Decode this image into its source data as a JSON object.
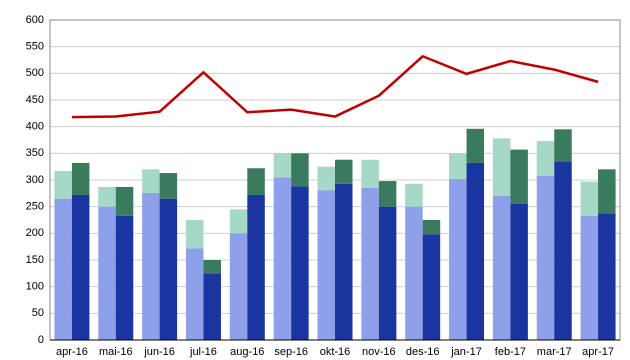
{
  "chart_data": {
    "type": "bar",
    "categories": [
      "apr-16",
      "mai-16",
      "jun-16",
      "jul-16",
      "aug-16",
      "sep-16",
      "okt-16",
      "nov-16",
      "des-16",
      "jan-17",
      "feb-17",
      "mar-17",
      "apr-17"
    ],
    "series": [
      {
        "color": "#8fa0ea",
        "stack": "a",
        "values": [
          265,
          250,
          276,
          172,
          200,
          305,
          281,
          285,
          250,
          302,
          270,
          308,
          233
        ]
      },
      {
        "color": "#a6d8c8",
        "stack": "a",
        "values": [
          52,
          37,
          44,
          53,
          45,
          45,
          44,
          53,
          43,
          48,
          108,
          65,
          64
        ]
      },
      {
        "color": "#1a35a0",
        "stack": "b",
        "values": [
          272,
          233,
          265,
          125,
          272,
          288,
          293,
          250,
          198,
          332,
          255,
          335,
          237
        ]
      },
      {
        "color": "#3a7a5e",
        "stack": "b",
        "values": [
          60,
          54,
          48,
          25,
          50,
          62,
          45,
          48,
          27,
          64,
          102,
          60,
          83
        ]
      },
      {
        "color": "#c00000",
        "type": "line",
        "values": [
          418,
          419,
          428,
          502,
          427,
          432,
          419,
          458,
          532,
          499,
          523,
          507,
          484
        ]
      }
    ],
    "ylim": [
      0,
      600
    ],
    "yticks": [
      0,
      50,
      100,
      150,
      200,
      250,
      300,
      350,
      400,
      450,
      500,
      550,
      600
    ],
    "grid": true
  }
}
